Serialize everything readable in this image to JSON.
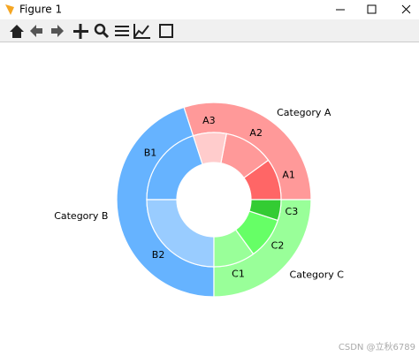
{
  "window": {
    "title": "Figure 1"
  },
  "chart_data": {
    "type": "nested-pie",
    "outer": {
      "labels": [
        "Category A",
        "Category B",
        "Category C"
      ],
      "values": [
        30,
        45,
        25
      ],
      "colors": [
        "#ff9999",
        "#66b3ff",
        "#99ff99"
      ]
    },
    "inner": {
      "labels": [
        "A1",
        "A2",
        "A3",
        "B1",
        "B2",
        "C1",
        "C2",
        "C3"
      ],
      "values": [
        10,
        12,
        8,
        20,
        25,
        10,
        10,
        5
      ],
      "colors": [
        "#ff6666",
        "#ff9999",
        "#ffcccc",
        "#66b3ff",
        "#99ccff",
        "#99ff99",
        "#66ff66",
        "#33cc33"
      ]
    }
  },
  "watermark": "CSDN @立秋6789"
}
